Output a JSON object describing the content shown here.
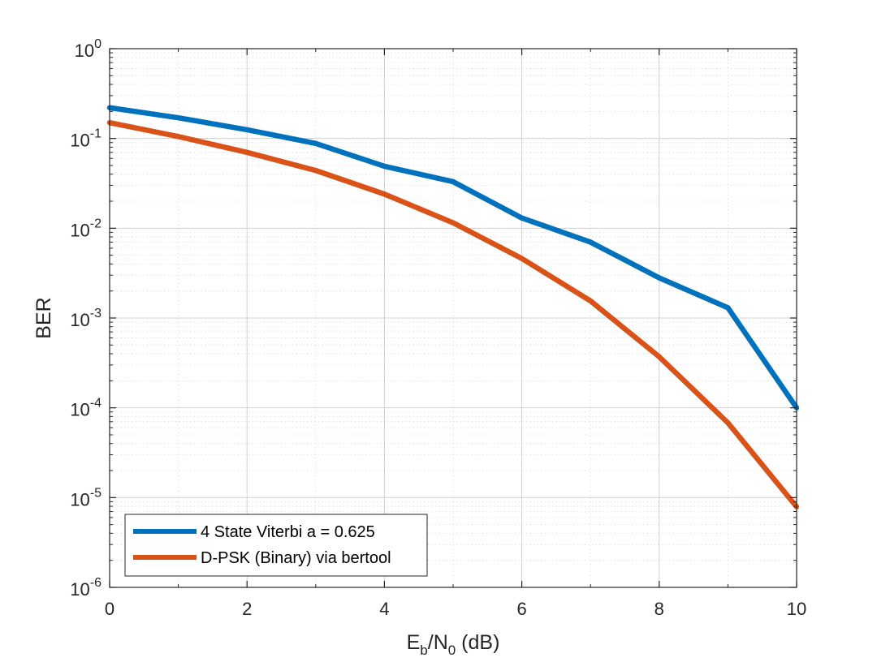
{
  "chart_data": {
    "type": "line",
    "xlabel_parts": {
      "base1": "E",
      "sub1": "b",
      "sep": "/N",
      "sub2": "0",
      "tail": " (dB)"
    },
    "ylabel": "BER",
    "xlim": [
      0,
      10
    ],
    "ylim": [
      1e-06,
      1
    ],
    "yscale": "log",
    "grid": true,
    "minor_grid": true,
    "legend_position": "bottom-left",
    "x_ticks": [
      {
        "value": 0,
        "label": "0"
      },
      {
        "value": 2,
        "label": "2"
      },
      {
        "value": 4,
        "label": "4"
      },
      {
        "value": 6,
        "label": "6"
      },
      {
        "value": 8,
        "label": "8"
      },
      {
        "value": 10,
        "label": "10"
      }
    ],
    "y_ticks": [
      {
        "value": 1,
        "base": "10",
        "exp": "0"
      },
      {
        "value": 0.1,
        "base": "10",
        "exp": "-1"
      },
      {
        "value": 0.01,
        "base": "10",
        "exp": "-2"
      },
      {
        "value": 0.001,
        "base": "10",
        "exp": "-3"
      },
      {
        "value": 0.0001,
        "base": "10",
        "exp": "-4"
      },
      {
        "value": 1e-05,
        "base": "10",
        "exp": "-5"
      },
      {
        "value": 1e-06,
        "base": "10",
        "exp": "-6"
      }
    ],
    "x": [
      0,
      1,
      2,
      3,
      4,
      5,
      6,
      7,
      8,
      9,
      10
    ],
    "series": [
      {
        "name": "4 State Viterbi a = 0.625",
        "color": "#0072BD",
        "values": [
          0.22,
          0.17,
          0.125,
          0.088,
          0.049,
          0.033,
          0.013,
          0.007,
          0.0028,
          0.0013,
          0.0001
        ]
      },
      {
        "name": "D-PSK (Binary) via bertool",
        "color": "#D95319",
        "values": [
          0.15,
          0.105,
          0.07,
          0.044,
          0.024,
          0.0115,
          0.0046,
          0.00155,
          0.00037,
          6.8e-05,
          7.9e-06
        ]
      }
    ]
  }
}
